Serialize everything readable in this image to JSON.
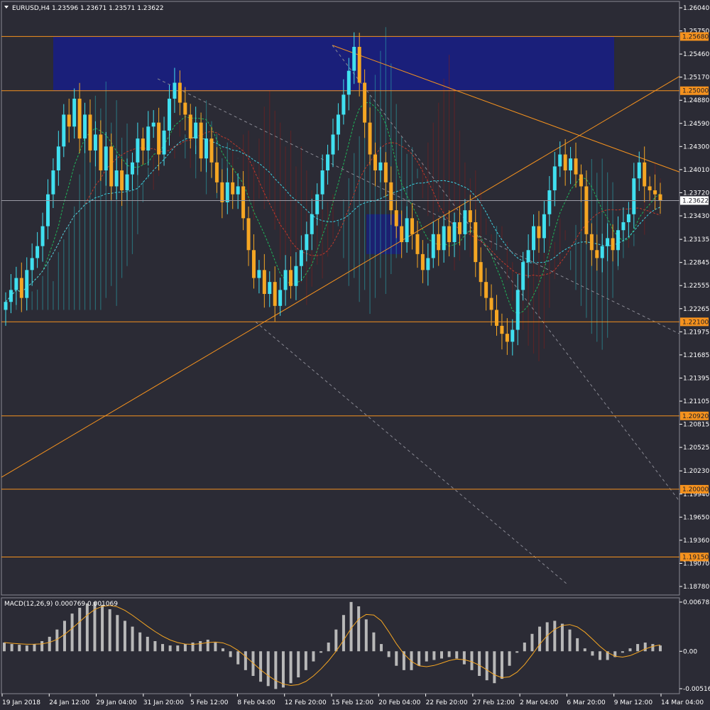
{
  "window": {
    "symbol_caption": "EURUSD,H4",
    "ohlc": [
      "1.23596",
      "1.23671",
      "1.23571",
      "1.23622"
    ],
    "current_price": "1.23622"
  },
  "macd": {
    "label": "MACD(12,26,9)",
    "main_value": "0.000769",
    "signal_value": "0.001069",
    "ticks": [
      "0.006785",
      "0.00",
      "-0.005162"
    ]
  },
  "chart_data": {
    "type": "candlestick",
    "title": "EURUSD,H4",
    "price_ticks": [
      "1.26040",
      "1.25750",
      "1.25460",
      "1.25170",
      "1.24880",
      "1.24590",
      "1.24300",
      "1.24010",
      "1.23720",
      "1.23430",
      "1.23135",
      "1.22845",
      "1.22555",
      "1.22265",
      "1.21975",
      "1.21685",
      "1.21395",
      "1.21105",
      "1.20815",
      "1.20525",
      "1.20230",
      "1.19940",
      "1.19650",
      "1.19360",
      "1.19070",
      "1.18780"
    ],
    "ylim": [
      1.1878,
      1.2604
    ],
    "time_labels": [
      "19 Jan 2018",
      "24 Jan 12:00",
      "29 Jan 04:00",
      "31 Jan 20:00",
      "5 Feb 12:00",
      "8 Feb 04:00",
      "12 Feb 20:00",
      "15 Feb 12:00",
      "20 Feb 04:00",
      "22 Feb 20:00",
      "27 Feb 12:00",
      "2 Mar 04:00",
      "6 Mar 20:00",
      "9 Mar 12:00",
      "14 Mar 04:00"
    ],
    "horizontal_levels": [
      "1.25680",
      "1.25000",
      "1.22100",
      "1.20920",
      "1.20000",
      "1.19150"
    ],
    "colors": {
      "bull": "#40e0f0",
      "bear": "#f5a623",
      "level": "#f5921e",
      "blue_zone": "#1a1f7a",
      "cloud_up": "#2aa0a8",
      "cloud_down": "#7a1f1f",
      "macd_hist": "#b8b8b8",
      "macd_signal": "#f5a623"
    },
    "closes": [
      1.2235,
      1.225,
      1.2265,
      1.224,
      1.2275,
      1.229,
      1.2305,
      1.233,
      1.237,
      1.24,
      1.243,
      1.247,
      1.2455,
      1.249,
      1.244,
      1.247,
      1.2425,
      1.2445,
      1.24,
      1.243,
      1.238,
      1.24,
      1.2375,
      1.2395,
      1.241,
      1.244,
      1.2425,
      1.2455,
      1.246,
      1.242,
      1.245,
      1.249,
      1.251,
      1.2485,
      1.247,
      1.244,
      1.246,
      1.2415,
      1.244,
      1.241,
      1.2385,
      1.236,
      1.2385,
      1.237,
      1.238,
      1.234,
      1.23,
      1.2265,
      1.2275,
      1.2245,
      1.226,
      1.223,
      1.225,
      1.2275,
      1.2255,
      1.228,
      1.23,
      1.232,
      1.2345,
      1.237,
      1.24,
      1.242,
      1.2445,
      1.247,
      1.2495,
      1.2525,
      1.2555,
      1.251,
      1.246,
      1.242,
      1.24,
      1.241,
      1.2385,
      1.235,
      1.233,
      1.231,
      1.234,
      1.232,
      1.2295,
      1.2275,
      1.229,
      1.232,
      1.23,
      1.233,
      1.231,
      1.2335,
      1.232,
      1.235,
      1.2335,
      1.2285,
      1.226,
      1.224,
      1.2225,
      1.2205,
      1.2195,
      1.2185,
      1.22,
      1.225,
      1.2285,
      1.23,
      1.233,
      1.2315,
      1.2345,
      1.2375,
      1.2405,
      1.242,
      1.24,
      1.2415,
      1.2395,
      1.238,
      1.232,
      1.23,
      1.229,
      1.2305,
      1.2315,
      1.23,
      1.2325,
      1.2335,
      1.2345,
      1.239,
      1.241,
      1.238,
      1.2375,
      1.237,
      1.2362
    ],
    "macd_hist": [
      0.0012,
      0.001,
      0.0009,
      0.0008,
      0.001,
      0.0014,
      0.002,
      0.003,
      0.0042,
      0.0052,
      0.006,
      0.0066,
      0.0068,
      0.0064,
      0.0058,
      0.005,
      0.0042,
      0.0034,
      0.0026,
      0.002,
      0.0014,
      0.001,
      0.0008,
      0.0008,
      0.001,
      0.0012,
      0.0014,
      0.0016,
      0.0012,
      0.0004,
      -0.0008,
      -0.0018,
      -0.0026,
      -0.0034,
      -0.0042,
      -0.0048,
      -0.0052,
      -0.005,
      -0.0044,
      -0.0036,
      -0.0026,
      -0.0014,
      -0.0002,
      0.0012,
      0.003,
      0.005,
      0.0068,
      0.0062,
      0.0044,
      0.0026,
      0.001,
      -0.0008,
      -0.002,
      -0.0026,
      -0.0026,
      -0.002,
      -0.0014,
      -0.0012,
      -0.001,
      -0.0008,
      -0.001,
      -0.0018,
      -0.0026,
      -0.0034,
      -0.004,
      -0.0044,
      -0.0038,
      -0.002,
      -0.0002,
      0.0012,
      0.0024,
      0.0034,
      0.004,
      0.0042,
      0.0038,
      0.003,
      0.0018,
      0.0004,
      -0.0006,
      -0.0012,
      -0.0012,
      -0.0008,
      -0.0002,
      0.0004,
      0.001,
      0.0012,
      0.001,
      0.0008
    ]
  }
}
